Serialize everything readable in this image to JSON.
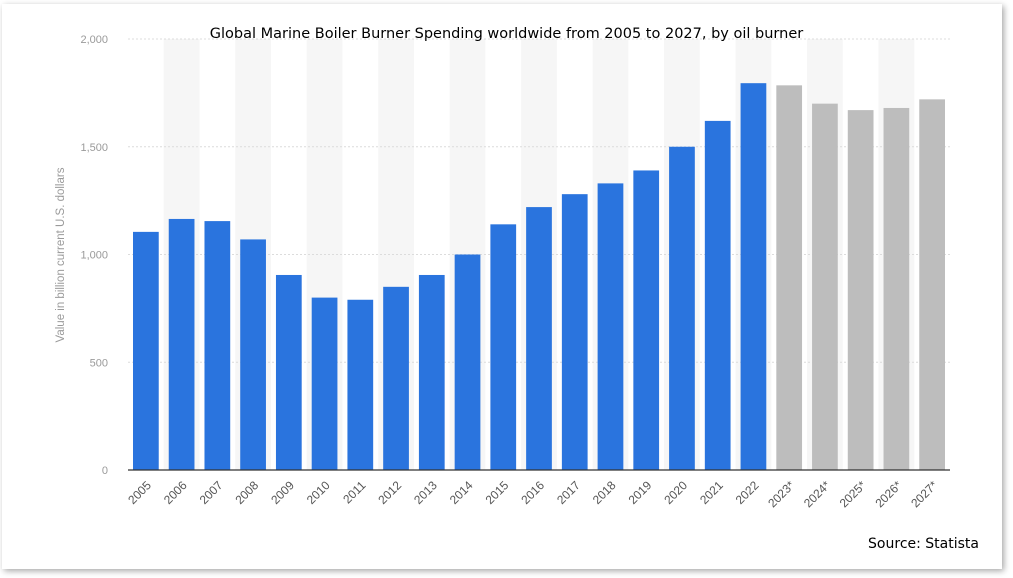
{
  "chart_data": {
    "type": "bar",
    "title": "Global Marine Boiler Burner Spending worldwide from 2005 to 2027, by oil burner",
    "ylabel": "Value in billion current U.S. dollars",
    "xlabel": "",
    "ylim": [
      0,
      2000
    ],
    "yticks": [
      0,
      500,
      1000,
      1500,
      2000
    ],
    "ytick_labels": [
      "0",
      "500",
      "1,000",
      "1,500",
      "2,000"
    ],
    "categories": [
      "2005",
      "2006",
      "2007",
      "2008",
      "2009",
      "2010",
      "2011",
      "2012",
      "2013",
      "2014",
      "2015",
      "2016",
      "2017",
      "2018",
      "2019",
      "2020",
      "2021",
      "2022",
      "2023*",
      "2024*",
      "2025*",
      "2026*",
      "2027*"
    ],
    "values": [
      1105,
      1165,
      1155,
      1070,
      905,
      800,
      790,
      850,
      905,
      1000,
      1140,
      1220,
      1280,
      1330,
      1390,
      1500,
      1620,
      1795,
      1785,
      1700,
      1670,
      1680,
      1720
    ],
    "forecast": [
      false,
      false,
      false,
      false,
      false,
      false,
      false,
      false,
      false,
      false,
      false,
      false,
      false,
      false,
      false,
      false,
      false,
      false,
      true,
      true,
      true,
      true,
      true
    ],
    "colors": {
      "actual": "#2a74de",
      "forecast": "#bdbdbd"
    },
    "grid": true
  },
  "source": "Source: Statista"
}
